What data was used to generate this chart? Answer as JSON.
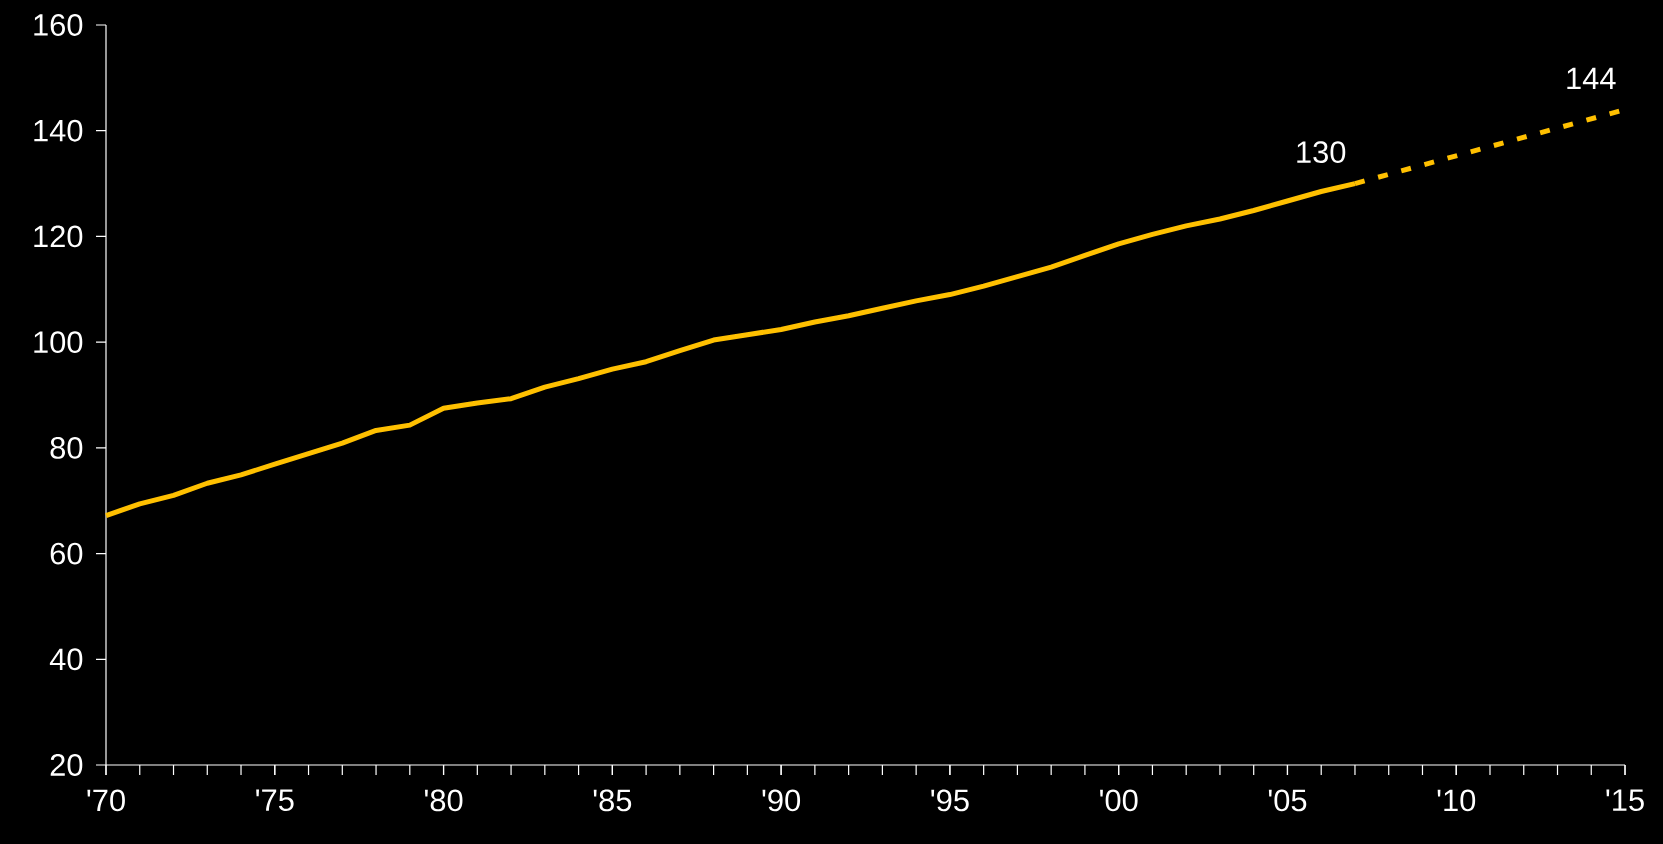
{
  "chart_data": {
    "type": "line",
    "series": [
      {
        "color": "#ffc000",
        "line_style": "solid",
        "x": [
          1970,
          1971,
          1972,
          1973,
          1974,
          1975,
          1976,
          1977,
          1978,
          1979,
          1980,
          1981,
          1982,
          1983,
          1984,
          1985,
          1986,
          1987,
          1988,
          1989,
          1990,
          1991,
          1992,
          1993,
          1994,
          1995,
          1996,
          1997,
          1998,
          1999,
          2000,
          2001,
          2002,
          2003,
          2004,
          2005,
          2006,
          2007
        ],
        "values": [
          67.2,
          69.4,
          71.0,
          73.3,
          74.9,
          76.9,
          78.9,
          80.9,
          83.3,
          84.3,
          87.5,
          88.5,
          89.3,
          91.5,
          93.1,
          94.9,
          96.3,
          98.4,
          100.4,
          101.4,
          102.4,
          103.8,
          105.0,
          106.4,
          107.8,
          109.0,
          110.6,
          112.4,
          114.2,
          116.4,
          118.6,
          120.4,
          122.0,
          123.3,
          124.9,
          126.7,
          128.5,
          130
        ]
      },
      {
        "color": "#ffc000",
        "line_style": "dashed",
        "x": [
          2007,
          2015
        ],
        "values": [
          130,
          144
        ]
      }
    ],
    "xlim": [
      1970,
      2015
    ],
    "xticks": [
      {
        "value": 1970,
        "label": "'70"
      },
      {
        "value": 1975,
        "label": "'75"
      },
      {
        "value": 1980,
        "label": "'80"
      },
      {
        "value": 1985,
        "label": "'85"
      },
      {
        "value": 1990,
        "label": "'90"
      },
      {
        "value": 1995,
        "label": "'95"
      },
      {
        "value": 2000,
        "label": "'00"
      },
      {
        "value": 2005,
        "label": "'05"
      },
      {
        "value": 2010,
        "label": "'10"
      },
      {
        "value": 2015,
        "label": "'15"
      }
    ],
    "ylim": [
      20,
      160
    ],
    "yticks": [
      20,
      40,
      60,
      80,
      100,
      120,
      140,
      160
    ],
    "annotations": [
      {
        "text": "130",
        "x": 2007,
        "y": 130
      },
      {
        "text": "144",
        "x": 2015,
        "y": 144
      }
    ],
    "grid": false,
    "marker": "none"
  }
}
